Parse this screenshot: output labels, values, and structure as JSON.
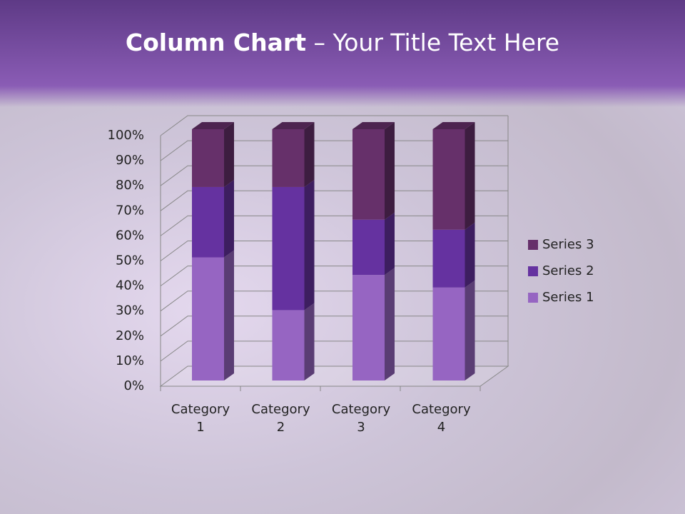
{
  "chart_data": {
    "type": "stacked-bar-3d",
    "title_bold": "Column Chart",
    "title": "– Your Title Text Here",
    "categories": [
      "Category 1",
      "Category 2",
      "Category 3",
      "Category 4"
    ],
    "series": [
      {
        "name": "Series 1",
        "color": "#9665c2",
        "values": [
          49,
          28,
          42,
          37
        ]
      },
      {
        "name": "Series 2",
        "color": "#6532a0",
        "values": [
          28,
          49,
          22,
          23
        ]
      },
      {
        "name": "Series 3",
        "color": "#66306a",
        "values": [
          23,
          23,
          36,
          40
        ]
      }
    ],
    "ylim": [
      0,
      100
    ],
    "yticks": [
      {
        "value": 0,
        "label": "0%"
      },
      {
        "value": 10,
        "label": "10%"
      },
      {
        "value": 20,
        "label": "20%"
      },
      {
        "value": 30,
        "label": "30%"
      },
      {
        "value": 40,
        "label": "40%"
      },
      {
        "value": 50,
        "label": "50%"
      },
      {
        "value": 60,
        "label": "60%"
      },
      {
        "value": 70,
        "label": "70%"
      },
      {
        "value": 80,
        "label": "80%"
      },
      {
        "value": 90,
        "label": "90%"
      },
      {
        "value": 100,
        "label": "100%"
      }
    ],
    "grid": true,
    "legend": "right"
  }
}
